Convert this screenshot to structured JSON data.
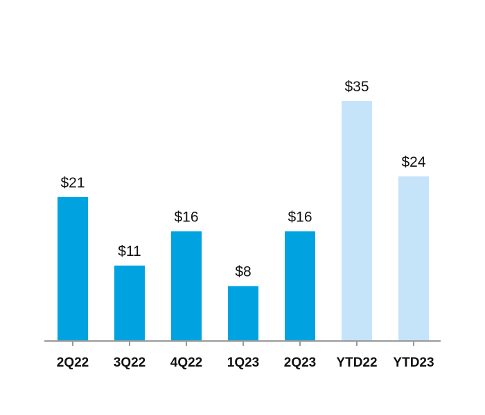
{
  "chart_data": {
    "type": "bar",
    "title": "",
    "xlabel": "",
    "ylabel": "",
    "categories": [
      "2Q22",
      "3Q22",
      "4Q22",
      "1Q23",
      "2Q23",
      "YTD22",
      "YTD23"
    ],
    "values": [
      21,
      11,
      16,
      8,
      16,
      35,
      24
    ],
    "value_labels": [
      "$21",
      "$11",
      "$16",
      "$8",
      "$16",
      "$35",
      "$24"
    ],
    "ylim": [
      0,
      35
    ],
    "grid": false,
    "legend": "none",
    "colors": {
      "quarter": "#00A3E0",
      "ytd": "#C5E4FA",
      "axis": "#999999",
      "text": "#111111"
    },
    "bar_color_keys": [
      "quarter",
      "quarter",
      "quarter",
      "quarter",
      "quarter",
      "ytd",
      "ytd"
    ]
  }
}
